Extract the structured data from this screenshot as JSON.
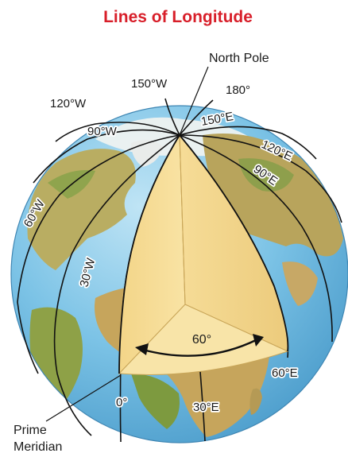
{
  "title": "Lines of Longitude",
  "labels": {
    "north_pole": "North Pole",
    "prime_meridian_line1": "Prime",
    "prime_meridian_line2": "Meridian",
    "angle": "60°"
  },
  "meridians": {
    "w150": "150°W",
    "e180": "180°",
    "w120": "120°W",
    "w90": "90°W",
    "e150": "150°E",
    "e120": "120°E",
    "e90": "90°E",
    "w60": "60°W",
    "w30": "30°W",
    "zero": "0°",
    "e30": "30°E",
    "e60": "60°E"
  },
  "colors": {
    "title": "#d81f2a",
    "ocean": "#7cc3e6",
    "land": "#c8b56a",
    "wedge": "#f6dd96"
  }
}
